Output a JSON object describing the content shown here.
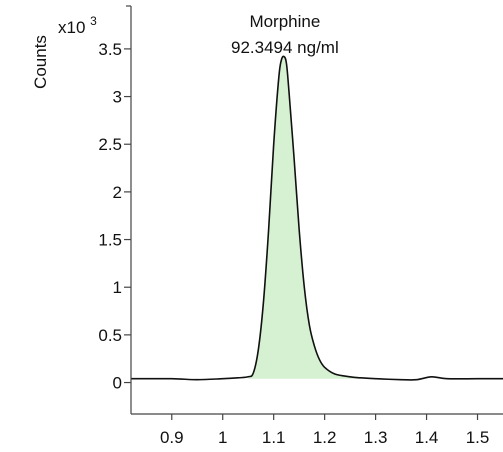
{
  "chart_data": {
    "type": "area",
    "title": "",
    "ylabel": "Counts",
    "y_multiplier_base": "x10",
    "y_multiplier_exponent": "3",
    "xlim": [
      0.82,
      1.55
    ],
    "ylim": [
      -0.33,
      3.95
    ],
    "x_ticks": [
      0.9,
      1,
      1.1,
      1.2,
      1.3,
      1.4,
      1.5
    ],
    "x_tick_labels": [
      "0.9",
      "1",
      "1.1",
      "1.2",
      "1.3",
      "1.4",
      "1.5"
    ],
    "y_ticks": [
      0,
      0.5,
      1,
      1.5,
      2,
      2.5,
      3,
      3.5
    ],
    "y_tick_labels": [
      "0",
      "0.5",
      "1",
      "1.5",
      "2",
      "2.5",
      "3",
      "3.5"
    ],
    "annotations": [
      {
        "line1": "Morphine",
        "line2": "92.3494 ng/ml",
        "x": 1.12
      }
    ],
    "series": [
      {
        "x": [
          0.82,
          0.9,
          0.95,
          1.0,
          1.03,
          1.05,
          1.06,
          1.07,
          1.08,
          1.09,
          1.1,
          1.11,
          1.115,
          1.12,
          1.125,
          1.13,
          1.14,
          1.15,
          1.16,
          1.17,
          1.18,
          1.19,
          1.2,
          1.22,
          1.25,
          1.27,
          1.3,
          1.35,
          1.38,
          1.41,
          1.44,
          1.5,
          1.55
        ],
        "y": [
          0.04,
          0.04,
          0.03,
          0.04,
          0.05,
          0.06,
          0.1,
          0.35,
          0.85,
          1.6,
          2.5,
          3.2,
          3.38,
          3.42,
          3.35,
          3.05,
          2.35,
          1.6,
          1.0,
          0.6,
          0.38,
          0.24,
          0.16,
          0.09,
          0.06,
          0.05,
          0.04,
          0.03,
          0.03,
          0.06,
          0.04,
          0.04,
          0.04
        ]
      }
    ],
    "shaded_region": {
      "x_start": 1.05,
      "x_end": 1.27
    }
  }
}
